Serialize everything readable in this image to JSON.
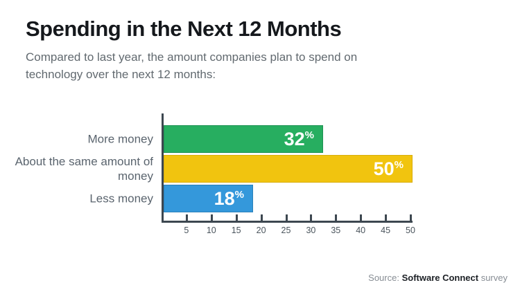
{
  "header": {
    "title": "Spending in the Next 12 Months",
    "subtitle_line1": "Compared to last year, the amount companies plan to spend on",
    "subtitle_line2": "technology over the next 12 months:"
  },
  "chart_data": {
    "type": "bar",
    "orientation": "horizontal",
    "title": "Spending in the Next 12 Months",
    "subtitle": "Compared to last year, the amount companies plan to spend on technology over the next 12 months:",
    "categories": [
      "More money",
      "About the same amount of money",
      "Less money"
    ],
    "values": [
      32,
      50,
      18
    ],
    "unit": "%",
    "colors": [
      "#27AE60",
      "#F1C40F",
      "#3498DB"
    ],
    "border_colors": [
      "#1e9153",
      "#d8ad0c",
      "#2980b9"
    ],
    "axis_color": "#3d4750",
    "xlim": [
      0,
      50
    ],
    "xticks": [
      5,
      10,
      15,
      20,
      25,
      30,
      35,
      40,
      45,
      50
    ],
    "grid": false,
    "legend": false
  },
  "footer": {
    "source_prefix": "Source: ",
    "source_name": "Software Connect",
    "source_suffix": " survey"
  }
}
